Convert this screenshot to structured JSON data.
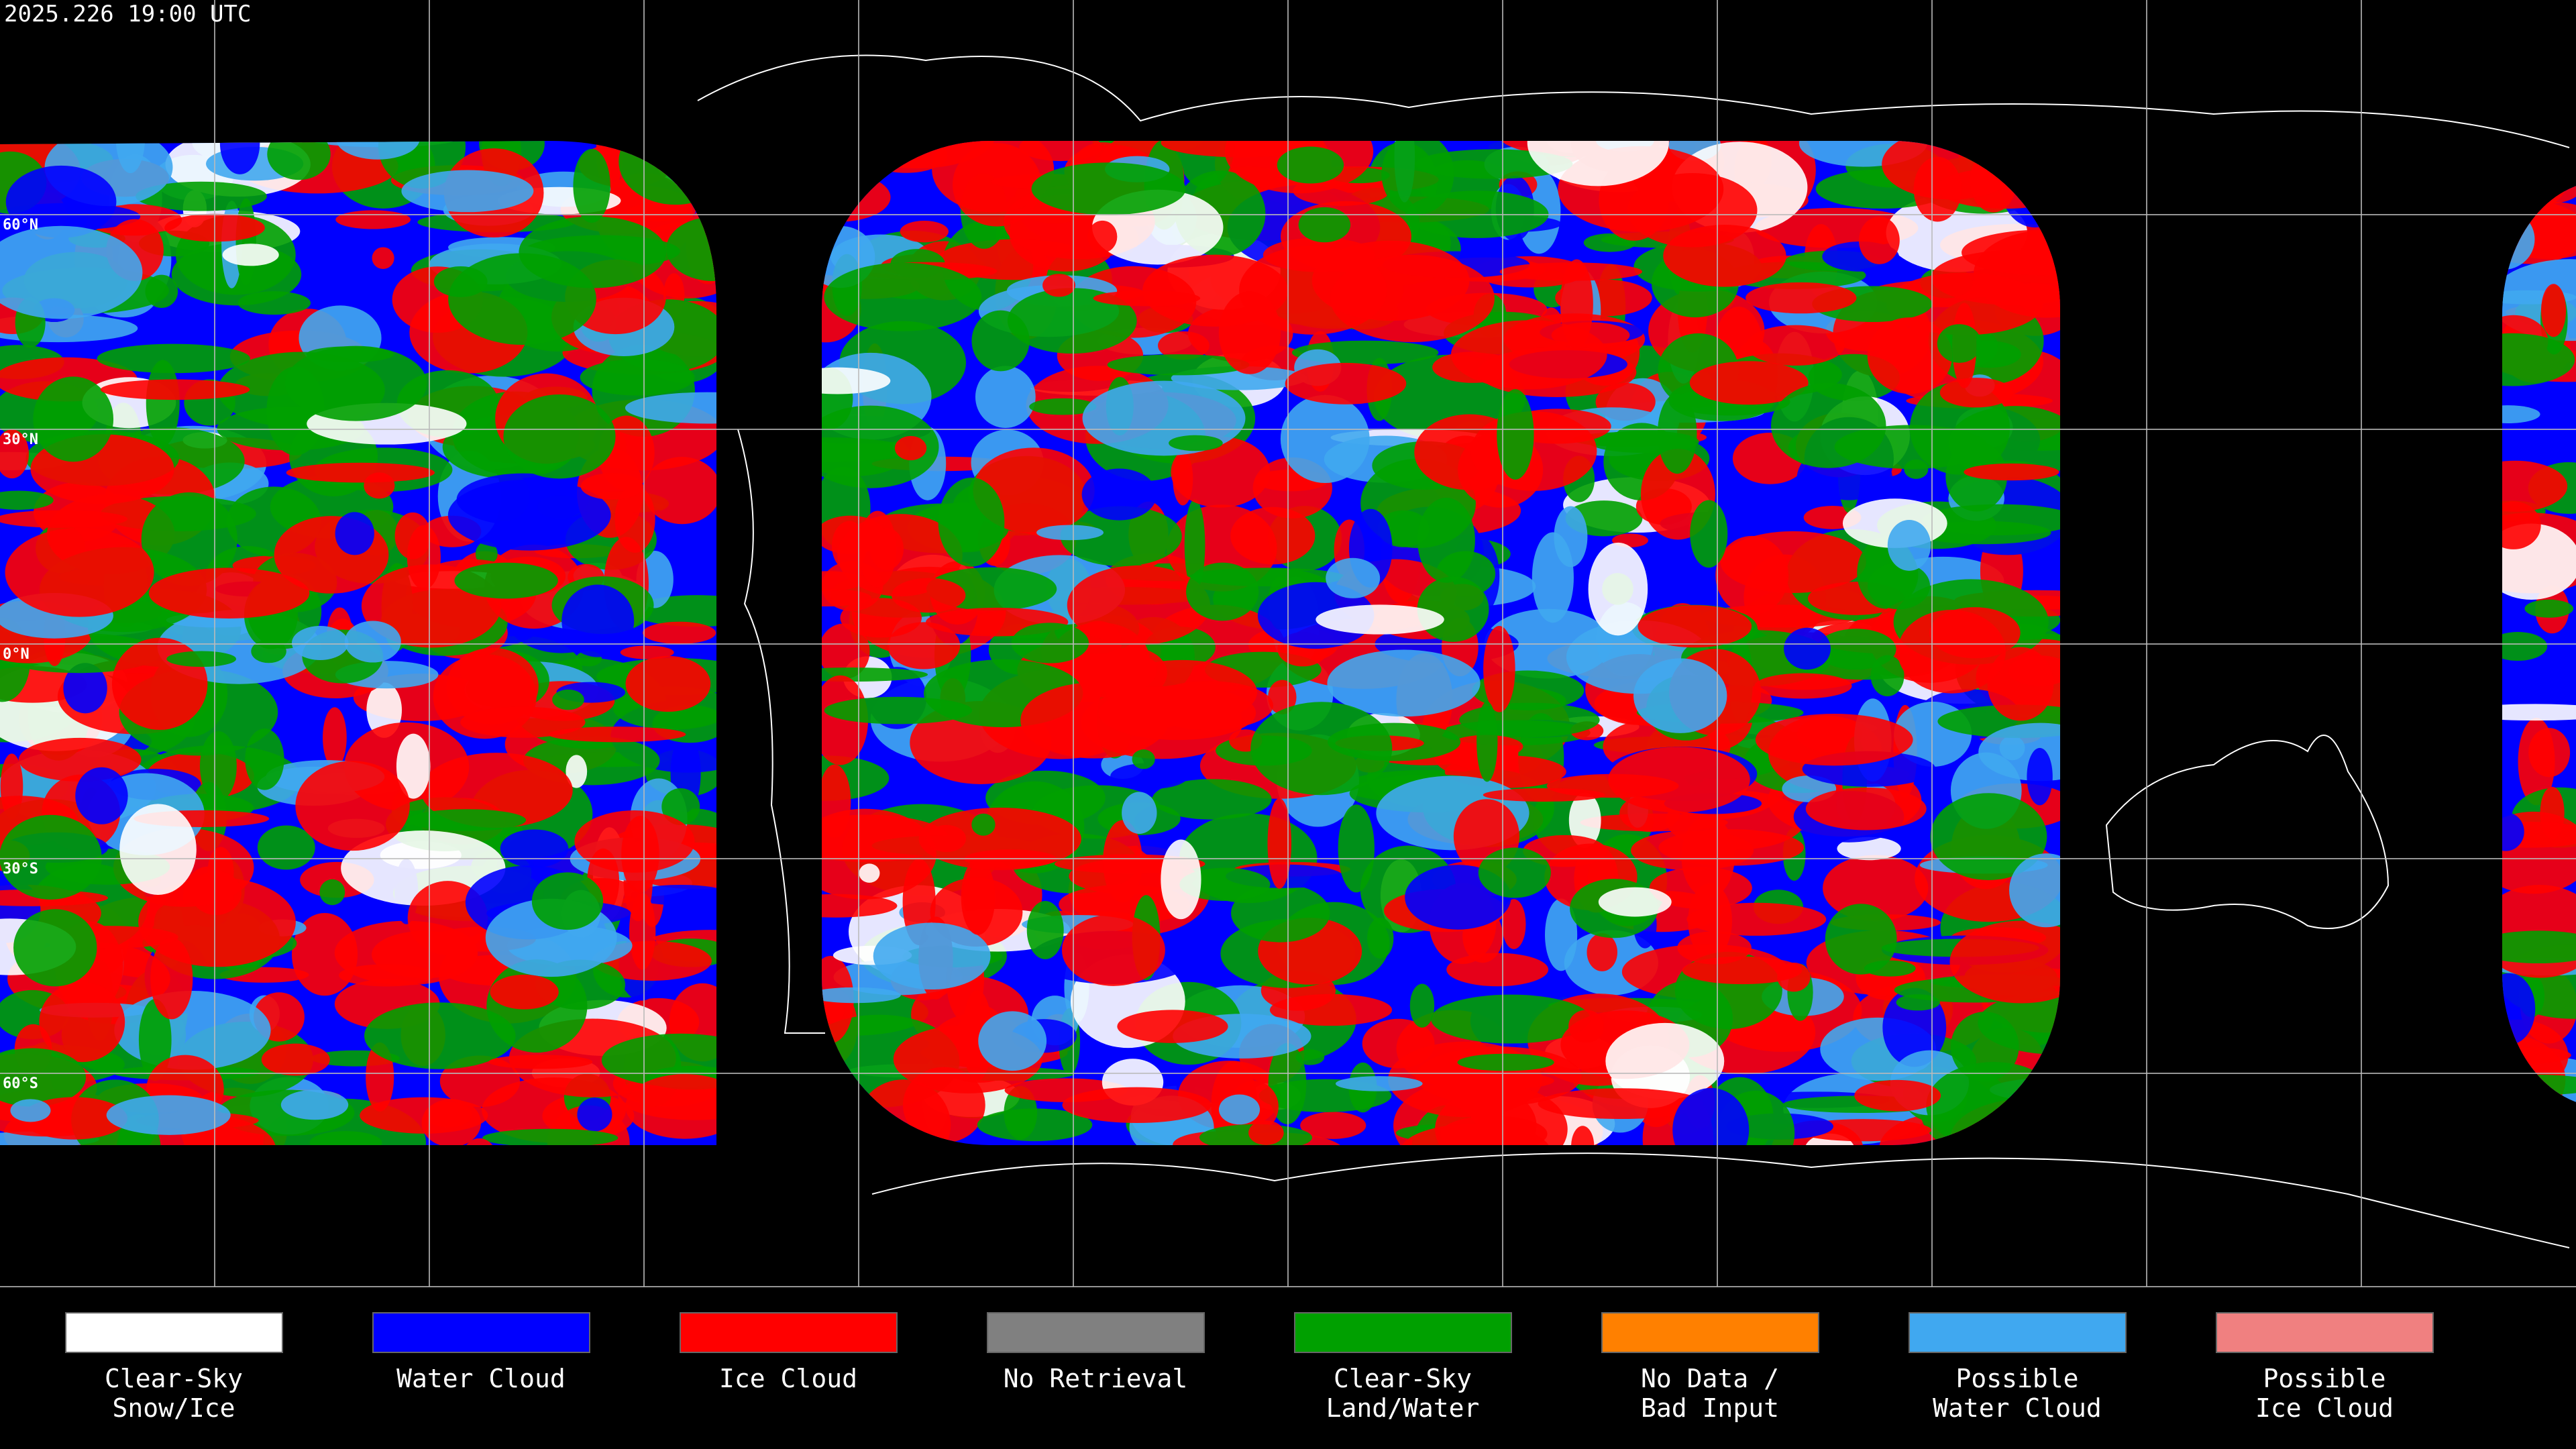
{
  "header": {
    "timestamp": "2025.226 19:00 UTC"
  },
  "map": {
    "lat_labels": [
      "60°N",
      "30°N",
      "0°N",
      "30°S",
      "60°S"
    ]
  },
  "legend": {
    "items": [
      {
        "label": [
          "Clear-Sky",
          "Snow/Ice"
        ],
        "color": "#ffffff"
      },
      {
        "label": [
          "Water Cloud"
        ],
        "color": "#0000ff"
      },
      {
        "label": [
          "Ice Cloud"
        ],
        "color": "#ff0000"
      },
      {
        "label": [
          "No Retrieval"
        ],
        "color": "#808080"
      },
      {
        "label": [
          "Clear-Sky",
          "Land/Water"
        ],
        "color": "#00a000"
      },
      {
        "label": [
          "No Data /",
          "Bad Input"
        ],
        "color": "#ff8000"
      },
      {
        "label": [
          "Possible",
          "Water Cloud"
        ],
        "color": "#40a8f0"
      },
      {
        "label": [
          "Possible",
          "Ice Cloud"
        ],
        "color": "#f08080"
      }
    ]
  }
}
